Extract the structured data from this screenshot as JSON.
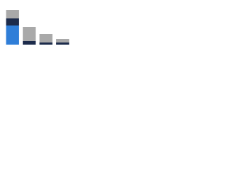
{
  "chart_data": {
    "type": "stacked-bar",
    "categories": [
      null,
      null,
      null,
      null
    ],
    "series": [
      {
        "color": "#2f7ed8",
        "values": [
          27,
          0,
          0,
          0
        ]
      },
      {
        "color": "#1c2b4b",
        "values": [
          10,
          5,
          3,
          3
        ]
      },
      {
        "color": "#a9a9a9",
        "values": [
          12,
          20,
          12,
          5
        ]
      }
    ],
    "ylim": [
      0,
      50
    ]
  }
}
